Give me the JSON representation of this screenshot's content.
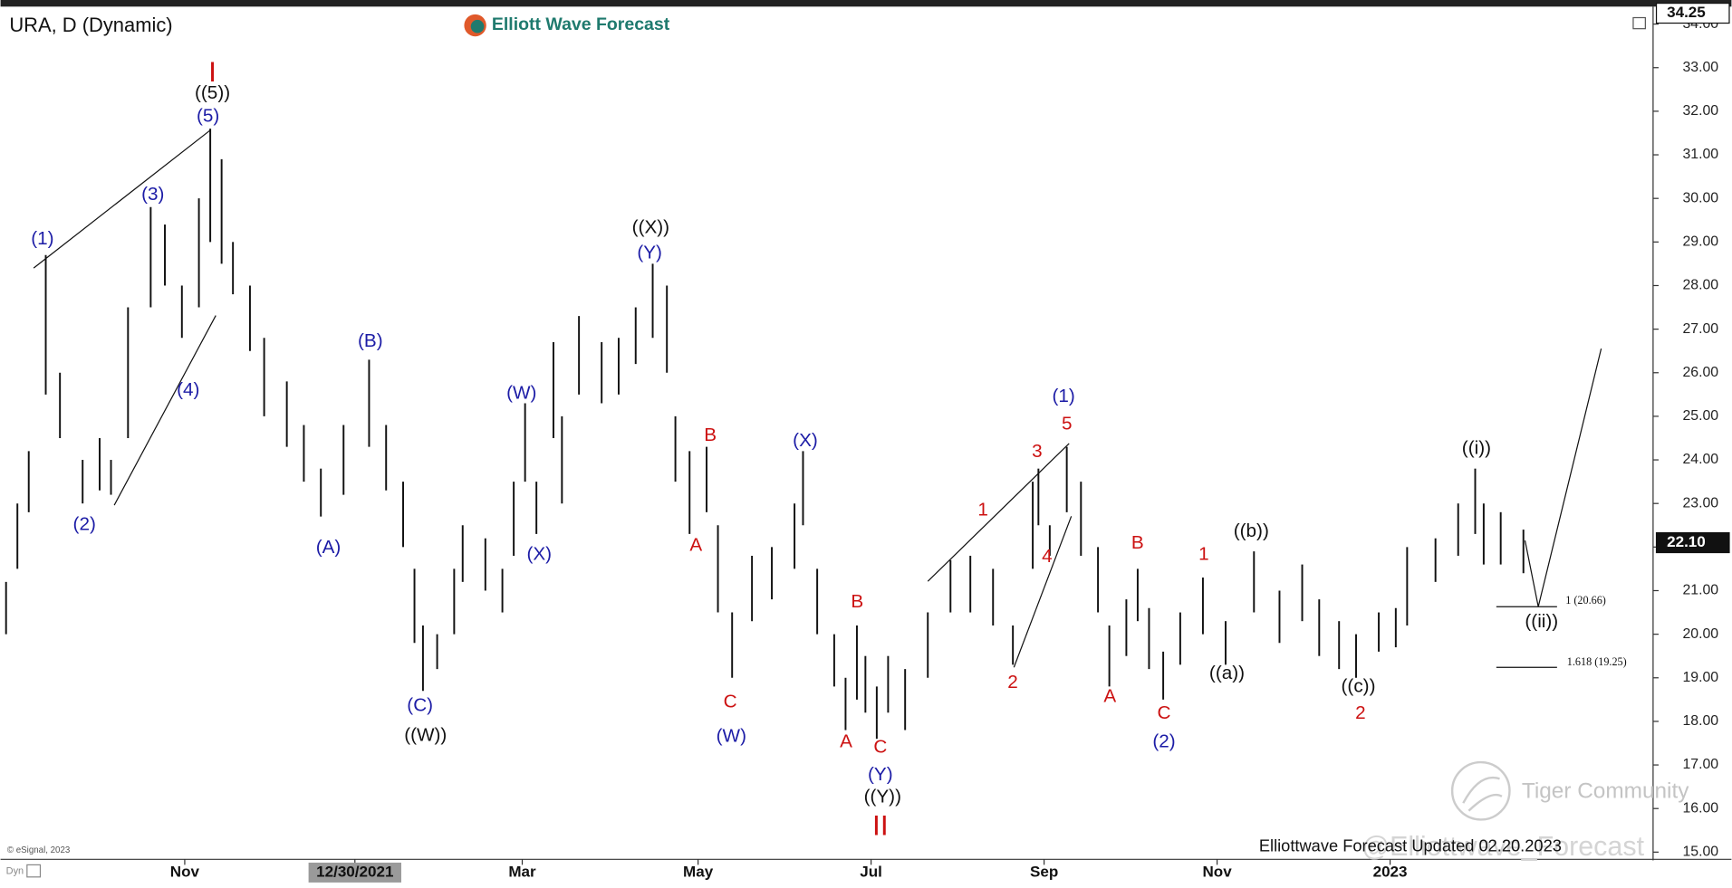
{
  "chart_data": {
    "type": "ohlc",
    "title": "URA, D (Dynamic)",
    "logo": "Elliott Wave Forecast",
    "footer": "Elliottwave Forecast Updated 02.20.2023",
    "watermarks": [
      "Tiger Community",
      "@Elliottwave_Forecast"
    ],
    "copyright": "© eSignal, 2023",
    "mode_label": "Dyn",
    "color": "#111111",
    "xlim": [
      0,
      578
    ],
    "xticks": [
      {
        "value": 63,
        "label": "Nov"
      },
      {
        "value": 123,
        "label": "12/30/2021"
      },
      {
        "value": 182,
        "label": "Mar"
      },
      {
        "value": 244,
        "label": "May"
      },
      {
        "value": 305,
        "label": "Jul"
      },
      {
        "value": 366,
        "label": "Sep"
      },
      {
        "value": 427,
        "label": "Nov"
      },
      {
        "value": 488,
        "label": "2023"
      }
    ],
    "highlighted_xtick": 1,
    "ylim": [
      14.86,
      34.35
    ],
    "yticks": [
      {
        "value": 15,
        "label": "15.00"
      },
      {
        "value": 16,
        "label": "16.00"
      },
      {
        "value": 17,
        "label": "17.00"
      },
      {
        "value": 18,
        "label": "18.00"
      },
      {
        "value": 19,
        "label": "19.00"
      },
      {
        "value": 20,
        "label": "20.00"
      },
      {
        "value": 21,
        "label": "21.00"
      },
      {
        "value": 22,
        "label": "22.00"
      },
      {
        "value": 23,
        "label": "23.00"
      },
      {
        "value": 24,
        "label": "24.00"
      },
      {
        "value": 25,
        "label": "25.00"
      },
      {
        "value": 26,
        "label": "26.00"
      },
      {
        "value": 27,
        "label": "27.00"
      },
      {
        "value": 28,
        "label": "28.00"
      },
      {
        "value": 29,
        "label": "29.00"
      },
      {
        "value": 30,
        "label": "30.00"
      },
      {
        "value": 31,
        "label": "31.00"
      },
      {
        "value": 32,
        "label": "32.00"
      },
      {
        "value": 33,
        "label": "33.00"
      },
      {
        "value": 34,
        "label": "34.00"
      }
    ],
    "price_markers": [
      {
        "value": 34.25,
        "label": "34.25"
      },
      {
        "value": 22.1,
        "label": "22.10"
      }
    ],
    "x": [
      0,
      4,
      8,
      14,
      19,
      27,
      33,
      37,
      43,
      51,
      56,
      62,
      68,
      72,
      76,
      80,
      86,
      91,
      99,
      105,
      111,
      119,
      128,
      134,
      140,
      144,
      147,
      152,
      158,
      161,
      169,
      175,
      179,
      183,
      187,
      193,
      196,
      202,
      210,
      216,
      222,
      228,
      233,
      236,
      241,
      247,
      251,
      256,
      263,
      270,
      278,
      281,
      286,
      292,
      296,
      300,
      303,
      307,
      311,
      317,
      325,
      333,
      340,
      348,
      355,
      362,
      364,
      368,
      374,
      379,
      385,
      389,
      395,
      399,
      403,
      408,
      414,
      422,
      430,
      440,
      449,
      457,
      463,
      470,
      476,
      484,
      490,
      494,
      504,
      512,
      518,
      521,
      527,
      535
    ],
    "high": [
      21.2,
      23.0,
      24.2,
      28.7,
      26.0,
      24.0,
      24.5,
      24.0,
      27.5,
      29.8,
      29.4,
      28.0,
      30.0,
      31.6,
      30.9,
      29.0,
      28.0,
      26.8,
      25.8,
      24.8,
      23.8,
      24.8,
      26.3,
      24.8,
      23.5,
      21.5,
      20.2,
      20.0,
      21.5,
      22.5,
      22.2,
      21.5,
      23.5,
      25.3,
      23.5,
      26.7,
      25.0,
      27.3,
      26.7,
      26.8,
      27.5,
      28.5,
      28.0,
      25.0,
      24.2,
      24.3,
      22.5,
      20.5,
      21.8,
      22.0,
      23.0,
      24.2,
      21.5,
      20.0,
      19.0,
      20.2,
      19.5,
      18.8,
      19.5,
      19.2,
      20.5,
      21.7,
      21.8,
      21.5,
      20.2,
      23.5,
      23.8,
      22.5,
      24.3,
      23.5,
      22.0,
      20.2,
      20.8,
      21.5,
      20.6,
      19.6,
      20.5,
      21.3,
      20.3,
      21.9,
      21.0,
      21.6,
      20.8,
      20.3,
      20.0,
      20.5,
      20.6,
      22.0,
      22.2,
      23.0,
      23.8,
      23.0,
      22.8,
      22.4
    ],
    "low": [
      20.0,
      21.5,
      22.8,
      25.5,
      24.5,
      23.0,
      23.3,
      23.2,
      24.5,
      27.5,
      28.0,
      26.8,
      27.5,
      29.0,
      28.5,
      27.8,
      26.5,
      25.0,
      24.3,
      23.5,
      22.7,
      23.2,
      24.3,
      23.3,
      22.0,
      19.8,
      18.7,
      19.2,
      20.0,
      21.2,
      21.0,
      20.5,
      21.8,
      23.5,
      22.3,
      24.5,
      23.0,
      25.5,
      25.3,
      25.5,
      26.2,
      26.8,
      26.0,
      23.5,
      22.3,
      22.8,
      20.5,
      19.0,
      20.3,
      20.8,
      21.5,
      22.5,
      20.0,
      18.8,
      17.8,
      18.5,
      18.2,
      17.6,
      18.2,
      17.8,
      19.0,
      20.5,
      20.5,
      20.2,
      19.3,
      21.5,
      22.5,
      21.8,
      22.8,
      21.8,
      20.5,
      18.8,
      19.5,
      20.3,
      19.2,
      18.5,
      19.3,
      20.0,
      19.3,
      20.5,
      19.8,
      20.3,
      19.5,
      19.2,
      19.0,
      19.6,
      19.7,
      20.2,
      21.2,
      21.8,
      22.3,
      21.6,
      21.6,
      21.4
    ],
    "annotations": [
      {
        "text": "I",
        "color": "#cc1111"
      },
      {
        "text": "((5))",
        "color": "#111111"
      },
      {
        "text": "(5)",
        "color": "#1c1ca6"
      },
      {
        "text": "(1)",
        "color": "#1c1ca6"
      },
      {
        "text": "(2)",
        "color": "#1c1ca6"
      },
      {
        "text": "(3)",
        "color": "#1c1ca6"
      },
      {
        "text": "(4)",
        "color": "#1c1ca6"
      },
      {
        "text": "(A)",
        "color": "#1c1ca6"
      },
      {
        "text": "(B)",
        "color": "#1c1ca6"
      },
      {
        "text": "(C)",
        "color": "#1c1ca6"
      },
      {
        "text": "((W))",
        "color": "#111111"
      },
      {
        "text": "(W)",
        "color": "#1c1ca6"
      },
      {
        "text": "(X)",
        "color": "#1c1ca6"
      },
      {
        "text": "((X))",
        "color": "#111111"
      },
      {
        "text": "(Y)",
        "color": "#1c1ca6"
      },
      {
        "text": "B",
        "color": "#cc1111"
      },
      {
        "text": "A",
        "color": "#cc1111"
      },
      {
        "text": "C",
        "color": "#cc1111"
      },
      {
        "text": "(W)",
        "color": "#1c1ca6"
      },
      {
        "text": "(X)",
        "color": "#1c1ca6"
      },
      {
        "text": "B",
        "color": "#cc1111"
      },
      {
        "text": "A",
        "color": "#cc1111"
      },
      {
        "text": "C",
        "color": "#cc1111"
      },
      {
        "text": "(Y)",
        "color": "#1c1ca6"
      },
      {
        "text": "((Y))",
        "color": "#111111"
      },
      {
        "text": "II",
        "color": "#cc1111"
      },
      {
        "text": "1",
        "color": "#cc1111"
      },
      {
        "text": "2",
        "color": "#cc1111"
      },
      {
        "text": "3",
        "color": "#cc1111"
      },
      {
        "text": "4",
        "color": "#cc1111"
      },
      {
        "text": "5",
        "color": "#cc1111"
      },
      {
        "text": "(1)",
        "color": "#1c1ca6"
      },
      {
        "text": "A",
        "color": "#cc1111"
      },
      {
        "text": "B",
        "color": "#cc1111"
      },
      {
        "text": "C",
        "color": "#cc1111"
      },
      {
        "text": "(2)",
        "color": "#1c1ca6"
      },
      {
        "text": "1",
        "color": "#cc1111"
      },
      {
        "text": "((a))",
        "color": "#111111"
      },
      {
        "text": "((b))",
        "color": "#111111"
      },
      {
        "text": "((c))",
        "color": "#111111"
      },
      {
        "text": "2",
        "color": "#cc1111"
      },
      {
        "text": "((i))",
        "color": "#111111"
      },
      {
        "text": "((ii))",
        "color": "#111111"
      },
      {
        "text": "1 (20.66)",
        "color": "#111111"
      },
      {
        "text": "1.618 (19.25)",
        "color": "#111111"
      }
    ]
  }
}
